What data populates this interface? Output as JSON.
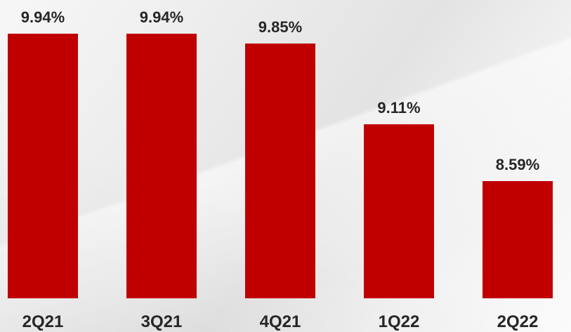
{
  "chart_data": {
    "type": "bar",
    "categories": [
      "2Q21",
      "3Q21",
      "4Q21",
      "1Q22",
      "2Q22"
    ],
    "values": [
      9.94,
      9.94,
      9.85,
      9.11,
      8.59
    ],
    "value_labels": [
      "9.94%",
      "9.94%",
      "9.85%",
      "9.11%",
      "8.59%"
    ],
    "bar_color": "#c00000",
    "grid": false,
    "legend": "none"
  }
}
